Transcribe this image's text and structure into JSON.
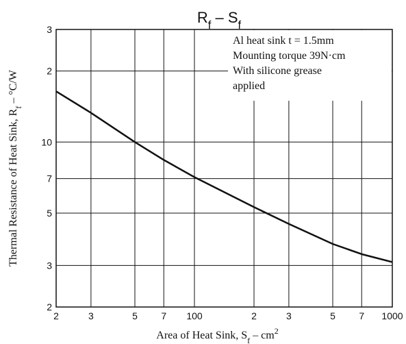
{
  "chart_data": {
    "type": "line",
    "title": [
      {
        "text": "R"
      },
      {
        "text": "f",
        "shift": "sub"
      },
      {
        "text": " – S"
      },
      {
        "text": "f",
        "shift": "sub"
      }
    ],
    "x_label": [
      {
        "text": "Area of Heat Sink, S"
      },
      {
        "text": "f",
        "shift": "sub"
      },
      {
        "text": " – cm"
      },
      {
        "text": "2",
        "shift": "super"
      }
    ],
    "y_label": [
      {
        "text": "Thermal Resistance of Heat Sink, R"
      },
      {
        "text": "f",
        "shift": "sub"
      },
      {
        "text": " – °C/W"
      }
    ],
    "annotation": [
      "Al heat sink t = 1.5mm",
      "Mounting torque 39N·cm",
      "With silicone grease",
      "applied"
    ],
    "x": [
      20,
      30,
      50,
      70,
      100,
      200,
      300,
      500,
      700,
      1000
    ],
    "series": [
      {
        "color": "#111111",
        "values": [
          16.4,
          13.3,
          10,
          8.4,
          7.1,
          5.3,
          4.5,
          3.7,
          3.35,
          3.1
        ]
      }
    ],
    "x_scale": "log",
    "y_scale": "log",
    "xlim": [
      20,
      1000
    ],
    "ylim": [
      2,
      30
    ],
    "xticks": [
      {
        "value": 20,
        "label": "2"
      },
      {
        "value": 30,
        "label": "3"
      },
      {
        "value": 50,
        "label": "5"
      },
      {
        "value": 70,
        "label": "7"
      },
      100,
      {
        "value": 200,
        "label": "2"
      },
      {
        "value": 300,
        "label": "3"
      },
      {
        "value": 500,
        "label": "5"
      },
      {
        "value": 700,
        "label": "7"
      },
      1000
    ],
    "yticks": [
      2,
      3,
      5,
      7,
      10,
      {
        "value": 20,
        "label": "2"
      },
      {
        "value": 30,
        "label": "3"
      }
    ],
    "grid": true
  }
}
